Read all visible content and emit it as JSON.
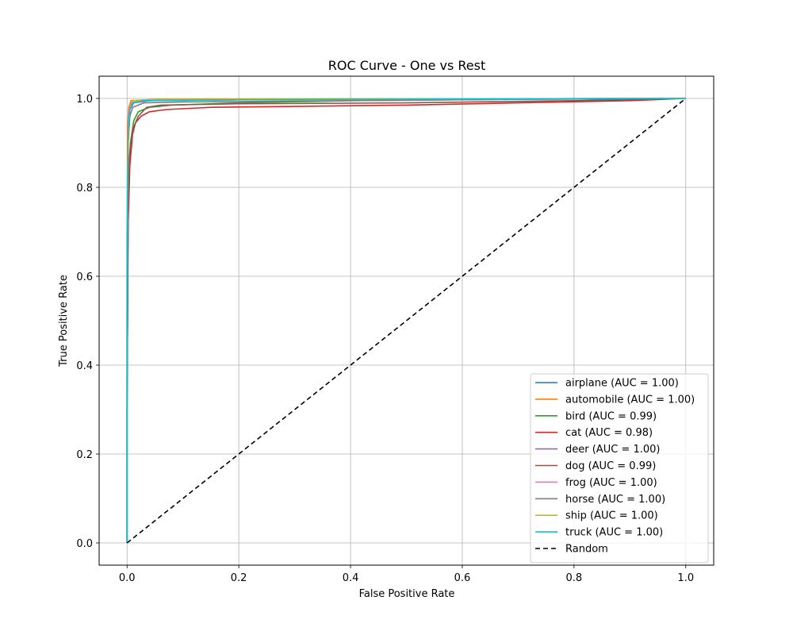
{
  "chart_data": {
    "type": "line",
    "title": "ROC Curve - One vs Rest",
    "xlabel": "False Positive Rate",
    "ylabel": "True Positive Rate",
    "xlim": [
      -0.05,
      1.05
    ],
    "ylim": [
      -0.05,
      1.05
    ],
    "xticks": [
      0.0,
      0.2,
      0.4,
      0.6,
      0.8,
      1.0
    ],
    "yticks": [
      0.0,
      0.2,
      0.4,
      0.6,
      0.8,
      1.0
    ],
    "tick_labels": [
      "0.0",
      "0.2",
      "0.4",
      "0.6",
      "0.8",
      "1.0"
    ],
    "grid": true,
    "legend_position": "lower-right",
    "series": [
      {
        "name": "airplane (AUC = 1.00)",
        "color": "#1f77b4",
        "points": [
          [
            0,
            0
          ],
          [
            0,
            0.35
          ],
          [
            0.001,
            0.9
          ],
          [
            0.003,
            0.97
          ],
          [
            0.008,
            0.99
          ],
          [
            0.03,
            0.995
          ],
          [
            0.2,
            0.997
          ],
          [
            0.6,
            0.999
          ],
          [
            1,
            1
          ]
        ]
      },
      {
        "name": "automobile (AUC = 1.00)",
        "color": "#ff7f0e",
        "points": [
          [
            0,
            0
          ],
          [
            0,
            0.6
          ],
          [
            0.001,
            0.94
          ],
          [
            0.003,
            0.98
          ],
          [
            0.007,
            0.995
          ],
          [
            0.05,
            0.998
          ],
          [
            0.4,
            0.999
          ],
          [
            1,
            1
          ]
        ]
      },
      {
        "name": "bird (AUC = 0.99)",
        "color": "#2ca02c",
        "points": [
          [
            0,
            0
          ],
          [
            0,
            0.3
          ],
          [
            0.002,
            0.8
          ],
          [
            0.006,
            0.9
          ],
          [
            0.012,
            0.95
          ],
          [
            0.02,
            0.97
          ],
          [
            0.04,
            0.98
          ],
          [
            0.08,
            0.985
          ],
          [
            0.2,
            0.99
          ],
          [
            0.4,
            0.995
          ],
          [
            0.7,
            0.998
          ],
          [
            1,
            1
          ]
        ]
      },
      {
        "name": "cat (AUC = 0.98)",
        "color": "#d62728",
        "points": [
          [
            0,
            0
          ],
          [
            0,
            0.3
          ],
          [
            0.002,
            0.72
          ],
          [
            0.005,
            0.85
          ],
          [
            0.01,
            0.92
          ],
          [
            0.015,
            0.945
          ],
          [
            0.025,
            0.96
          ],
          [
            0.04,
            0.97
          ],
          [
            0.07,
            0.975
          ],
          [
            0.15,
            0.98
          ],
          [
            0.3,
            0.982
          ],
          [
            0.5,
            0.985
          ],
          [
            0.7,
            0.99
          ],
          [
            0.9,
            0.995
          ],
          [
            1,
            1
          ]
        ]
      },
      {
        "name": "deer (AUC = 1.00)",
        "color": "#9467bd",
        "points": [
          [
            0,
            0
          ],
          [
            0,
            0.5
          ],
          [
            0.002,
            0.93
          ],
          [
            0.005,
            0.975
          ],
          [
            0.012,
            0.99
          ],
          [
            0.04,
            0.995
          ],
          [
            0.3,
            0.998
          ],
          [
            1,
            1
          ]
        ]
      },
      {
        "name": "dog (AUC = 0.99)",
        "color": "#8c564b",
        "points": [
          [
            0,
            0
          ],
          [
            0,
            0.3
          ],
          [
            0.002,
            0.78
          ],
          [
            0.005,
            0.88
          ],
          [
            0.01,
            0.93
          ],
          [
            0.02,
            0.96
          ],
          [
            0.035,
            0.98
          ],
          [
            0.06,
            0.985
          ],
          [
            0.2,
            0.988
          ],
          [
            0.5,
            0.99
          ],
          [
            0.8,
            0.995
          ],
          [
            1,
            1
          ]
        ]
      },
      {
        "name": "frog (AUC = 1.00)",
        "color": "#e377c2",
        "points": [
          [
            0,
            0
          ],
          [
            0,
            0.6
          ],
          [
            0.002,
            0.95
          ],
          [
            0.005,
            0.985
          ],
          [
            0.012,
            0.995
          ],
          [
            0.05,
            0.998
          ],
          [
            1,
            1
          ]
        ]
      },
      {
        "name": "horse (AUC = 1.00)",
        "color": "#7f7f7f",
        "points": [
          [
            0,
            0
          ],
          [
            0,
            0.5
          ],
          [
            0.002,
            0.9
          ],
          [
            0.005,
            0.96
          ],
          [
            0.01,
            0.98
          ],
          [
            0.03,
            0.99
          ],
          [
            0.1,
            0.992
          ],
          [
            0.4,
            0.995
          ],
          [
            0.7,
            0.998
          ],
          [
            1,
            1
          ]
        ]
      },
      {
        "name": "ship (AUC = 1.00)",
        "color": "#bcbd22",
        "points": [
          [
            0,
            0
          ],
          [
            0,
            0.7
          ],
          [
            0.001,
            0.85
          ],
          [
            0.003,
            0.95
          ],
          [
            0.006,
            0.985
          ],
          [
            0.012,
            0.995
          ],
          [
            0.05,
            0.998
          ],
          [
            1,
            1
          ]
        ]
      },
      {
        "name": "truck (AUC = 1.00)",
        "color": "#17becf",
        "points": [
          [
            0,
            0
          ],
          [
            0,
            0.69
          ],
          [
            0.002,
            0.93
          ],
          [
            0.005,
            0.975
          ],
          [
            0.01,
            0.99
          ],
          [
            0.03,
            0.995
          ],
          [
            0.2,
            0.997
          ],
          [
            1,
            1
          ]
        ]
      },
      {
        "name": "Random",
        "color": "#000000",
        "dashed": true,
        "points": [
          [
            0,
            0
          ],
          [
            1,
            1
          ]
        ]
      }
    ]
  }
}
